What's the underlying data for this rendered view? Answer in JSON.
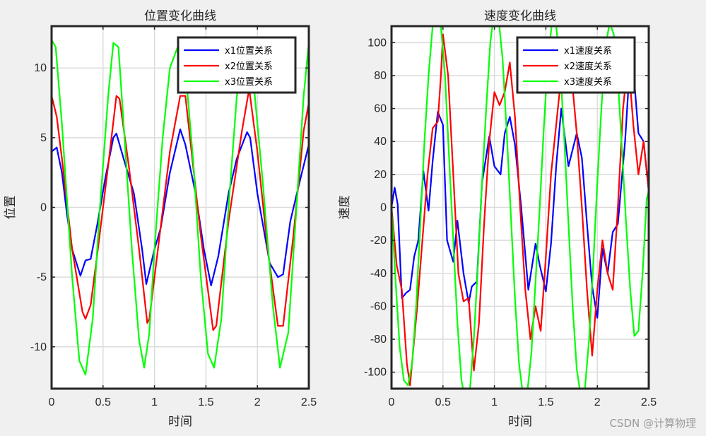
{
  "watermark": "CSDN @计算物理",
  "chart_data": [
    {
      "type": "line",
      "title": "位置变化曲线",
      "xlabel": "时间",
      "ylabel": "位置",
      "xlim": [
        0,
        2.5
      ],
      "ylim": [
        -13,
        13
      ],
      "xticks": [
        0,
        0.5,
        1,
        1.5,
        2,
        2.5
      ],
      "xtick_labels": [
        "0",
        "0.5",
        "1",
        "1.5",
        "2",
        "2.5"
      ],
      "yticks": [
        -10,
        -5,
        0,
        5,
        10
      ],
      "ytick_labels": [
        "-10",
        "-5",
        "0",
        "5",
        "10"
      ],
      "grid": true,
      "legend_position": "top-right",
      "series": [
        {
          "name": "x1位置关系",
          "color": "#0000ff",
          "x": [
            0,
            0.05,
            0.1,
            0.15,
            0.2,
            0.28,
            0.33,
            0.38,
            0.45,
            0.52,
            0.6,
            0.63,
            0.7,
            0.8,
            0.88,
            0.92,
            1.0,
            1.06,
            1.15,
            1.25,
            1.3,
            1.4,
            1.48,
            1.55,
            1.62,
            1.72,
            1.8,
            1.9,
            1.93,
            2.0,
            2.12,
            2.2,
            2.25,
            2.32,
            2.4,
            2.5
          ],
          "y": [
            4,
            4.3,
            2.5,
            -0.5,
            -3,
            -4.9,
            -3.8,
            -3.7,
            -1,
            2,
            5,
            5.3,
            3.5,
            1,
            -3,
            -5.5,
            -3,
            -1.5,
            2.5,
            5.6,
            4.5,
            1,
            -3,
            -5.6,
            -3.5,
            1,
            3.5,
            5.4,
            5,
            1,
            -4,
            -5,
            -4.8,
            -1,
            1.5,
            4.5
          ]
        },
        {
          "name": "x2位置关系",
          "color": "#ff0000",
          "x": [
            0,
            0.05,
            0.1,
            0.2,
            0.3,
            0.33,
            0.38,
            0.45,
            0.55,
            0.63,
            0.66,
            0.75,
            0.85,
            0.93,
            0.95,
            1.05,
            1.15,
            1.25,
            1.3,
            1.45,
            1.57,
            1.6,
            1.72,
            1.85,
            1.92,
            2.0,
            2.1,
            2.2,
            2.25,
            2.35,
            2.45,
            2.5
          ],
          "y": [
            8,
            6.5,
            3.5,
            -3,
            -7.5,
            -8,
            -7,
            -3,
            3,
            8,
            7.8,
            3,
            -3,
            -8.3,
            -8,
            -2,
            4,
            8,
            8,
            -2,
            -8.8,
            -8.5,
            -1,
            5.5,
            8.5,
            4,
            -3,
            -8.5,
            -8.5,
            -2,
            5.5,
            7.5
          ]
        },
        {
          "name": "x3位置关系",
          "color": "#00ff00",
          "x": [
            0,
            0.04,
            0.1,
            0.2,
            0.27,
            0.33,
            0.4,
            0.47,
            0.55,
            0.6,
            0.65,
            0.7,
            0.78,
            0.85,
            0.9,
            0.95,
            1.0,
            1.08,
            1.15,
            1.25,
            1.3,
            1.38,
            1.45,
            1.52,
            1.58,
            1.65,
            1.72,
            1.8,
            1.9,
            1.95,
            2.05,
            2.15,
            2.22,
            2.3,
            2.38,
            2.45,
            2.5
          ],
          "y": [
            12,
            11.5,
            6,
            -5,
            -11,
            -12,
            -8,
            0,
            8,
            11.8,
            11.5,
            6,
            -3,
            -9.5,
            -11.5,
            -9,
            -3,
            5,
            10,
            12,
            10,
            3,
            -5,
            -10.5,
            -11.5,
            -8,
            0,
            8,
            12,
            10,
            2,
            -7,
            -11.5,
            -9,
            0,
            8,
            11.8
          ]
        }
      ]
    },
    {
      "type": "line",
      "title": "速度变化曲线",
      "xlabel": "时间",
      "ylabel": "速度",
      "xlim": [
        0,
        2.5
      ],
      "ylim": [
        -110,
        110
      ],
      "xticks": [
        0,
        0.5,
        1,
        1.5,
        2,
        2.5
      ],
      "xtick_labels": [
        "0",
        "0.5",
        "1",
        "1.5",
        "2",
        "2.5"
      ],
      "yticks": [
        -100,
        -80,
        -60,
        -40,
        -20,
        0,
        20,
        40,
        60,
        80,
        100
      ],
      "ytick_labels": [
        "-100",
        "-80",
        "-60",
        "-40",
        "-20",
        "0",
        "20",
        "40",
        "60",
        "80",
        "100"
      ],
      "grid": true,
      "legend_position": "top-right",
      "series": [
        {
          "name": "x1速度关系",
          "color": "#0000ff",
          "x": [
            0,
            0.03,
            0.06,
            0.1,
            0.14,
            0.18,
            0.22,
            0.26,
            0.31,
            0.36,
            0.4,
            0.45,
            0.5,
            0.54,
            0.6,
            0.64,
            0.7,
            0.75,
            0.78,
            0.83,
            0.88,
            0.95,
            1.0,
            1.06,
            1.1,
            1.15,
            1.2,
            1.26,
            1.33,
            1.4,
            1.44,
            1.5,
            1.55,
            1.6,
            1.65,
            1.72,
            1.8,
            1.85,
            1.9,
            1.95,
            2.0,
            2.05,
            2.1,
            2.15,
            2.2,
            2.27,
            2.33,
            2.4,
            2.45,
            2.5
          ],
          "y": [
            0,
            12,
            2,
            -55,
            -52,
            -50,
            -30,
            -20,
            22,
            -2,
            28,
            58,
            50,
            -20,
            -33,
            -8,
            -40,
            -58,
            -48,
            -45,
            15,
            43,
            25,
            20,
            45,
            55,
            38,
            0,
            -50,
            -22,
            -35,
            -51,
            -22,
            25,
            60,
            25,
            45,
            30,
            -10,
            -48,
            -67,
            -25,
            -40,
            -15,
            -10,
            40,
            100,
            45,
            40,
            10
          ]
        },
        {
          "name": "x2速度关系",
          "color": "#ff0000",
          "x": [
            0,
            0.05,
            0.1,
            0.15,
            0.18,
            0.25,
            0.3,
            0.35,
            0.4,
            0.45,
            0.48,
            0.5,
            0.55,
            0.6,
            0.65,
            0.7,
            0.75,
            0.8,
            0.85,
            0.9,
            0.95,
            1.0,
            1.05,
            1.1,
            1.15,
            1.2,
            1.25,
            1.3,
            1.35,
            1.4,
            1.45,
            1.5,
            1.55,
            1.6,
            1.65,
            1.7,
            1.75,
            1.8,
            1.85,
            1.9,
            1.95,
            2.0,
            2.05,
            2.1,
            2.15,
            2.2,
            2.25,
            2.3,
            2.35,
            2.4,
            2.45,
            2.5
          ],
          "y": [
            0,
            -35,
            -50,
            -95,
            -108,
            -60,
            -20,
            20,
            48,
            52,
            80,
            105,
            80,
            20,
            -40,
            -57,
            -55,
            -99,
            -70,
            -10,
            40,
            70,
            62,
            70,
            88,
            55,
            0,
            -50,
            -80,
            -60,
            -75,
            -30,
            20,
            50,
            80,
            70,
            80,
            45,
            0,
            -50,
            -90,
            -50,
            -20,
            -40,
            -50,
            0,
            60,
            90,
            50,
            20,
            40,
            10
          ]
        },
        {
          "name": "x3速度关系",
          "color": "#00ff00",
          "x": [
            0,
            0.04,
            0.08,
            0.12,
            0.16,
            0.2,
            0.24,
            0.28,
            0.32,
            0.36,
            0.4,
            0.44,
            0.48,
            0.52,
            0.56,
            0.6,
            0.64,
            0.68,
            0.72,
            0.76,
            0.8,
            0.84,
            0.88,
            0.92,
            0.96,
            1.0,
            1.04,
            1.08,
            1.12,
            1.16,
            1.2,
            1.24,
            1.28,
            1.32,
            1.36,
            1.4,
            1.44,
            1.48,
            1.52,
            1.56,
            1.6,
            1.64,
            1.68,
            1.72,
            1.76,
            1.8,
            1.84,
            1.88,
            1.92,
            1.96,
            2.0,
            2.04,
            2.08,
            2.12,
            2.16,
            2.2,
            2.24,
            2.28,
            2.32,
            2.36,
            2.4,
            2.44,
            2.48,
            2.5
          ],
          "y": [
            0,
            -45,
            -85,
            -105,
            -108,
            -95,
            -60,
            -10,
            40,
            80,
            110,
            118,
            110,
            80,
            30,
            -20,
            -70,
            -105,
            -118,
            -112,
            -80,
            -35,
            15,
            60,
            100,
            120,
            115,
            90,
            45,
            -5,
            -55,
            -95,
            -115,
            -112,
            -88,
            -45,
            0,
            48,
            90,
            112,
            110,
            85,
            40,
            -10,
            -60,
            -98,
            -115,
            -110,
            -80,
            -35,
            15,
            60,
            98,
            112,
            105,
            78,
            35,
            -10,
            -50,
            -78,
            -75,
            -40,
            5,
            10
          ]
        }
      ]
    }
  ]
}
